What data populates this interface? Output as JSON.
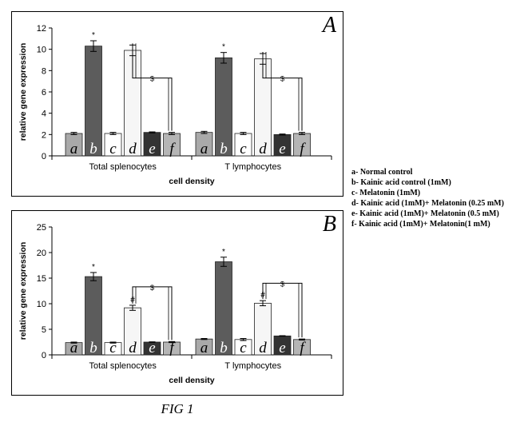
{
  "figure_caption": "FIG 1",
  "legend": [
    "a- Normal control",
    "b- Kainic acid control (1mM)",
    "c- Melatonin (1mM)",
    "d- Kainic acid (1mM)+ Melatonin (0.25 mM)",
    "e- Kainic acid (1mM)+ Melatonin (0.5 mM)",
    "f- Kainic acid (1mM)+ Melatonin(1 mM)"
  ],
  "colors": {
    "a": "#a9a9a9",
    "b": "#5c5c5c",
    "c": "#ffffff",
    "d": "#f6f6f6",
    "e": "#333333",
    "f": "#b5b5b5"
  },
  "chart_data": [
    {
      "panel": "A",
      "type": "bar",
      "xlabel": "cell density",
      "ylabel": "relative gene expression",
      "ylim": [
        0,
        12
      ],
      "yticks": [
        "0",
        "2",
        "4",
        "6",
        "8",
        "10",
        "12"
      ],
      "categories": [
        "Total splenocytes",
        "T lymphocytes"
      ],
      "bar_letters": [
        "a",
        "b",
        "c",
        "d",
        "e",
        "f"
      ],
      "series": [
        {
          "name": "a",
          "values": [
            2.1,
            2.2
          ],
          "errors": [
            0.1,
            0.1
          ]
        },
        {
          "name": "b",
          "values": [
            10.3,
            9.2
          ],
          "errors": [
            0.5,
            0.5
          ]
        },
        {
          "name": "c",
          "values": [
            2.1,
            2.1
          ],
          "errors": [
            0.1,
            0.1
          ]
        },
        {
          "name": "d",
          "values": [
            9.9,
            9.1
          ],
          "errors": [
            0.5,
            0.5
          ]
        },
        {
          "name": "e",
          "values": [
            2.2,
            2.0
          ],
          "errors": [
            0.05,
            0.05
          ]
        },
        {
          "name": "f",
          "values": [
            2.1,
            2.1
          ],
          "errors": [
            0.1,
            0.1
          ]
        }
      ],
      "annotations": [
        {
          "category": 0,
          "bar": "b",
          "text": "*"
        },
        {
          "category": 1,
          "bar": "b",
          "text": "*"
        }
      ],
      "brackets": [
        {
          "category": 0,
          "from": "d",
          "to": "f",
          "level": 7.3,
          "text": "$"
        },
        {
          "category": 1,
          "from": "d",
          "to": "f",
          "level": 7.3,
          "text": "$"
        }
      ]
    },
    {
      "panel": "B",
      "type": "bar",
      "xlabel": "cell density",
      "ylabel": "relative gene expression",
      "ylim": [
        0,
        25
      ],
      "yticks": [
        "0",
        "5",
        "10",
        "15",
        "20",
        "25"
      ],
      "categories": [
        "Total splenocytes",
        "T lymphocytes"
      ],
      "bar_letters": [
        "a",
        "b",
        "c",
        "d",
        "e",
        "f"
      ],
      "series": [
        {
          "name": "a",
          "values": [
            2.4,
            3.1
          ],
          "errors": [
            0.1,
            0.1
          ]
        },
        {
          "name": "b",
          "values": [
            15.3,
            18.2
          ],
          "errors": [
            0.8,
            0.9
          ]
        },
        {
          "name": "c",
          "values": [
            2.4,
            3.0
          ],
          "errors": [
            0.1,
            0.2
          ]
        },
        {
          "name": "d",
          "values": [
            9.2,
            10.1
          ],
          "errors": [
            0.5,
            0.5
          ]
        },
        {
          "name": "e",
          "values": [
            2.5,
            3.7
          ],
          "errors": [
            0.05,
            0.05
          ]
        },
        {
          "name": "f",
          "values": [
            2.5,
            3.0
          ],
          "errors": [
            0.1,
            0.1
          ]
        }
      ],
      "annotations": [
        {
          "category": 0,
          "bar": "b",
          "text": "*"
        },
        {
          "category": 0,
          "bar": "d",
          "text": "#"
        },
        {
          "category": 1,
          "bar": "b",
          "text": "*"
        },
        {
          "category": 1,
          "bar": "d",
          "text": "#"
        }
      ],
      "brackets": [
        {
          "category": 0,
          "from": "d",
          "to": "f",
          "level": 13.3,
          "text": "$"
        },
        {
          "category": 1,
          "from": "d",
          "to": "f",
          "level": 14.0,
          "text": "$"
        }
      ]
    }
  ]
}
